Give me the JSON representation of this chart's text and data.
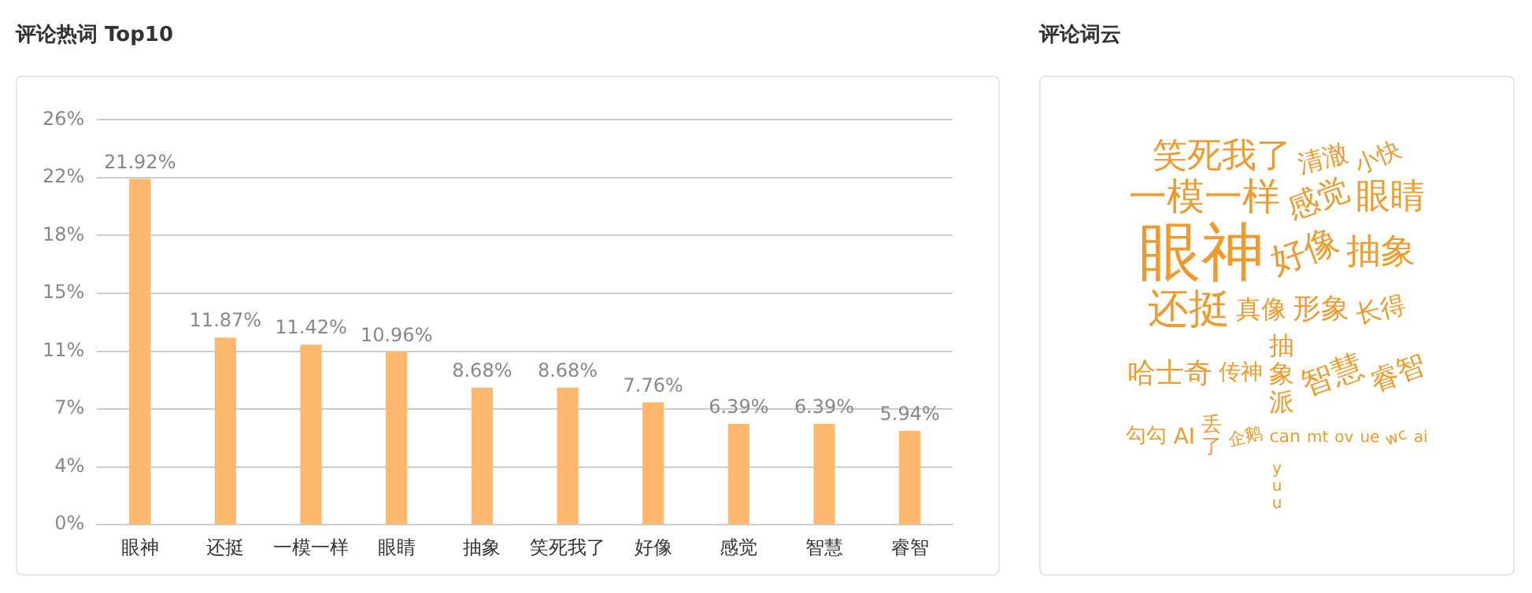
{
  "chart_data": [
    {
      "type": "bar",
      "title": "评论热词 Top10",
      "categories": [
        "眼神",
        "还挺",
        "一模一样",
        "眼睛",
        "抽象",
        "笑死我了",
        "好像",
        "感觉",
        "智慧",
        "睿智"
      ],
      "values": [
        21.92,
        11.87,
        11.42,
        10.96,
        8.68,
        8.68,
        7.76,
        6.39,
        6.39,
        5.94
      ],
      "value_labels": [
        "21.92%",
        "11.87%",
        "11.42%",
        "10.96%",
        "8.68%",
        "8.68%",
        "7.76%",
        "6.39%",
        "6.39%",
        "5.94%"
      ],
      "color": "#fdb86d",
      "ylim": [
        0,
        25.667
      ],
      "yticks": [
        {
          "value": 0,
          "label": "0%"
        },
        {
          "value": 3.667,
          "label": "4%"
        },
        {
          "value": 7.333,
          "label": "7%"
        },
        {
          "value": 11,
          "label": "11%"
        },
        {
          "value": 14.667,
          "label": "15%"
        },
        {
          "value": 18.333,
          "label": "18%"
        },
        {
          "value": 22,
          "label": "22%"
        },
        {
          "value": 25.667,
          "label": "26%"
        }
      ],
      "grid": "y",
      "legend": false
    },
    {
      "type": "other",
      "title": "评论词云",
      "annotations": [
        "眼神",
        "还挺",
        "一模一样",
        "笑死我了",
        "眼睛",
        "抽象",
        "好像",
        "感觉",
        "智慧",
        "睿智",
        "形象",
        "哈士奇",
        "真像",
        "长得",
        "清澈",
        "抽象派",
        "小快",
        "AI",
        "勾勾",
        "传神",
        "丢了",
        "企鹅",
        "can",
        "mt",
        "ov",
        "ue",
        "wc",
        "ai",
        "yuu"
      ]
    }
  ]
}
